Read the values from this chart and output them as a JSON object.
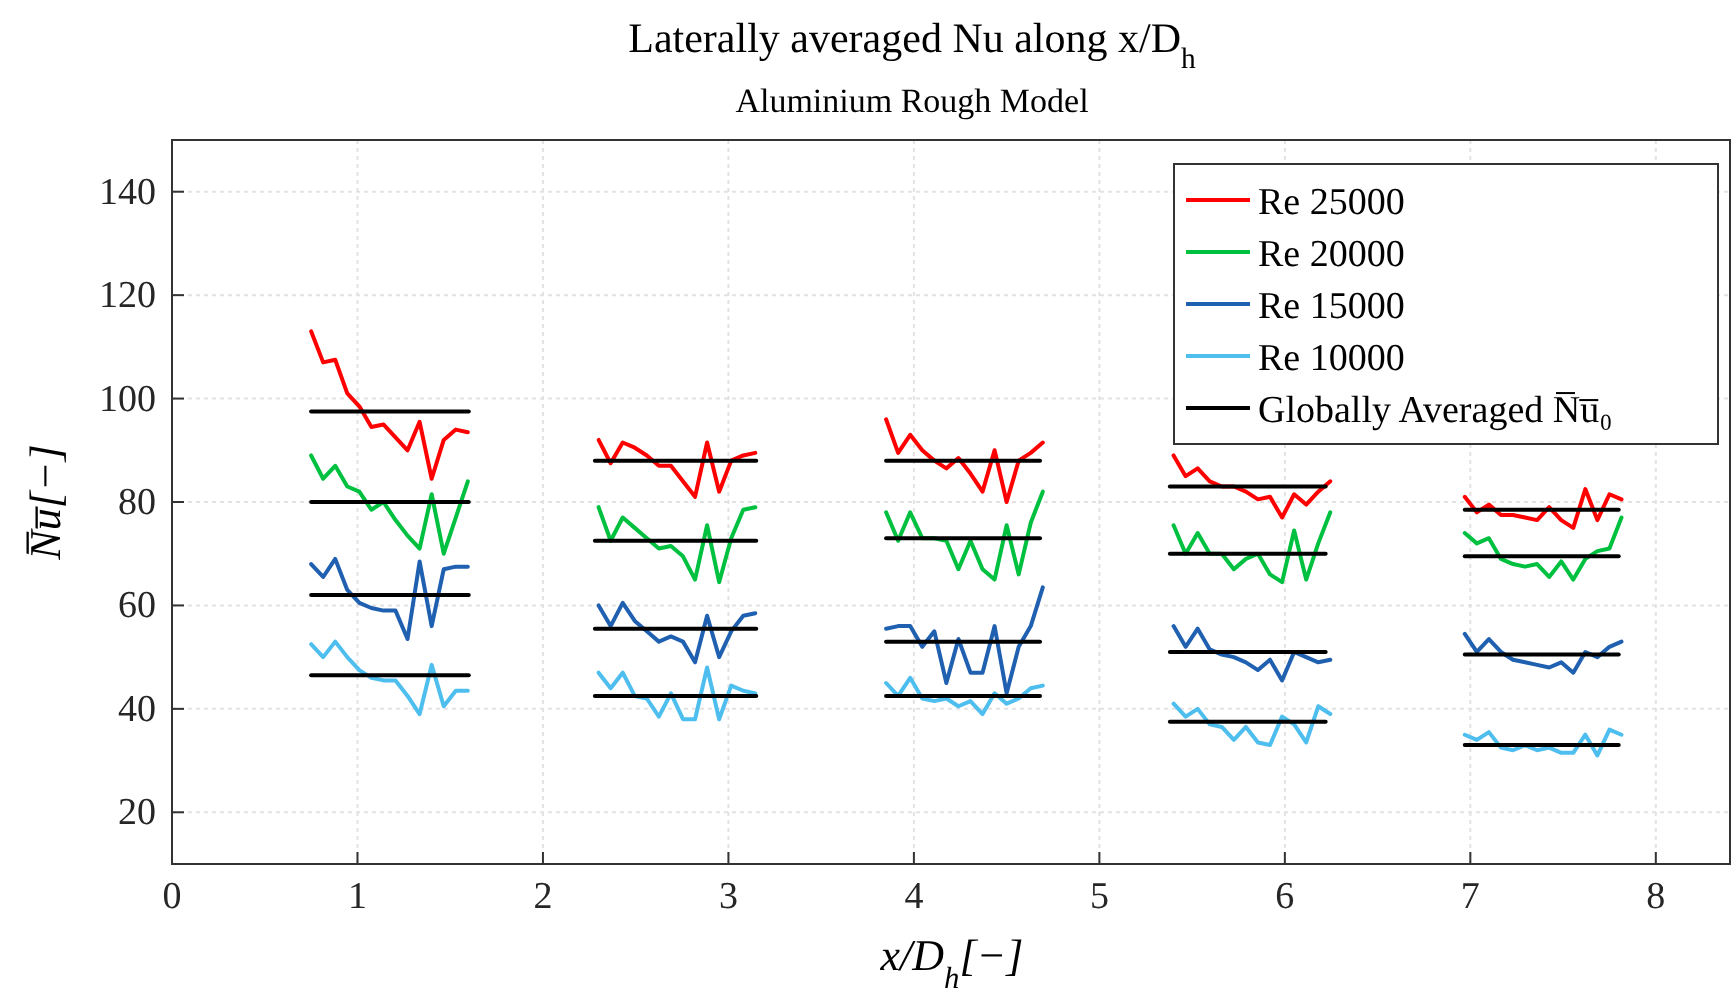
{
  "chart_data": {
    "type": "line",
    "title": "Laterally averaged Nu along x/D$_{h}$",
    "subtitle": "Aluminium Rough Model",
    "xlabel": "x/D$_{h}$[−]",
    "ylabel": "N̅u̅[−]",
    "xlim": [
      0,
      8.4
    ],
    "ylim": [
      10,
      150
    ],
    "xticks": [
      0,
      1,
      2,
      3,
      4,
      5,
      6,
      7,
      8
    ],
    "yticks": [
      20,
      40,
      60,
      80,
      100,
      120,
      140
    ],
    "grid": true,
    "legend": "top right",
    "series": [
      {
        "name": "Re 25000",
        "color": "#ff0000",
        "x": [
          0.75,
          0.815,
          0.88,
          0.945,
          1.01,
          1.075,
          1.14,
          1.205,
          1.27,
          1.335,
          1.4,
          1.465,
          1.53,
          1.595
        ],
        "values": [
          113,
          107,
          107.5,
          101,
          98.5,
          94.5,
          95,
          92.5,
          90,
          95.5,
          84.5,
          92,
          94,
          93.5
        ]
      },
      {
        "color": "#ff0000",
        "x": [
          2.3,
          2.365,
          2.43,
          2.495,
          2.56,
          2.625,
          2.69,
          2.755,
          2.82,
          2.885,
          2.95,
          3.015,
          3.08,
          3.145
        ],
        "values": [
          92,
          87.5,
          91.5,
          90.5,
          89,
          87,
          87,
          84,
          81,
          91.5,
          82,
          88,
          89,
          89.5
        ]
      },
      {
        "color": "#ff0000",
        "x": [
          3.85,
          3.915,
          3.98,
          4.045,
          4.11,
          4.175,
          4.24,
          4.305,
          4.37,
          4.435,
          4.5,
          4.565,
          4.63,
          4.695
        ],
        "values": [
          96,
          89.5,
          93,
          90,
          88,
          86.5,
          88.5,
          85.5,
          82,
          90,
          80,
          88,
          89.5,
          91.5
        ]
      },
      {
        "color": "#ff0000",
        "x": [
          5.4,
          5.465,
          5.53,
          5.595,
          5.66,
          5.725,
          5.79,
          5.855,
          5.92,
          5.985,
          6.05,
          6.115,
          6.18,
          6.245
        ],
        "values": [
          89,
          85,
          86.5,
          84,
          83,
          83,
          82,
          80.5,
          81,
          77,
          81.5,
          79.5,
          82,
          84
        ]
      },
      {
        "color": "#ff0000",
        "x": [
          6.97,
          7.035,
          7.1,
          7.165,
          7.23,
          7.295,
          7.36,
          7.425,
          7.49,
          7.555,
          7.62,
          7.685,
          7.75,
          7.815
        ],
        "values": [
          81,
          78,
          79.5,
          77.5,
          77.5,
          77,
          76.5,
          79,
          76.5,
          75,
          82.5,
          76.5,
          81.5,
          80.5
        ]
      },
      {
        "name": "Re 20000",
        "color": "#00c040",
        "x": [
          0.75,
          0.815,
          0.88,
          0.945,
          1.01,
          1.075,
          1.14,
          1.205,
          1.27,
          1.335,
          1.4,
          1.465,
          1.53,
          1.595
        ],
        "values": [
          89,
          84.5,
          87,
          83,
          82,
          78.5,
          80,
          76.5,
          73.5,
          71,
          81.5,
          70,
          77,
          84
        ]
      },
      {
        "color": "#00c040",
        "x": [
          2.3,
          2.365,
          2.43,
          2.495,
          2.56,
          2.625,
          2.69,
          2.755,
          2.82,
          2.885,
          2.95,
          3.015,
          3.08,
          3.145
        ],
        "values": [
          79,
          72.5,
          77,
          75,
          73,
          71,
          71.5,
          69.5,
          65,
          75.5,
          64.5,
          73,
          78.5,
          79
        ]
      },
      {
        "color": "#00c040",
        "x": [
          3.85,
          3.915,
          3.98,
          4.045,
          4.11,
          4.175,
          4.24,
          4.305,
          4.37,
          4.435,
          4.5,
          4.565,
          4.63,
          4.695
        ],
        "values": [
          78,
          72.5,
          78,
          73,
          73,
          72.5,
          67,
          72.5,
          67,
          65,
          75.5,
          66,
          76,
          82
        ]
      },
      {
        "color": "#00c040",
        "x": [
          5.4,
          5.465,
          5.53,
          5.595,
          5.66,
          5.725,
          5.79,
          5.855,
          5.92,
          5.985,
          6.05,
          6.115,
          6.18,
          6.245
        ],
        "values": [
          75.5,
          70,
          74,
          70,
          70,
          67,
          69,
          70,
          66,
          64.5,
          74.5,
          65,
          72,
          78
        ]
      },
      {
        "color": "#00c040",
        "x": [
          6.97,
          7.035,
          7.1,
          7.165,
          7.23,
          7.295,
          7.36,
          7.425,
          7.49,
          7.555,
          7.62,
          7.685,
          7.75,
          7.815
        ],
        "values": [
          74,
          72,
          73,
          69,
          68,
          67.5,
          68,
          65.5,
          68.5,
          65,
          69,
          70.5,
          71,
          77
        ]
      },
      {
        "name": "Re 15000",
        "color": "#2060b0",
        "x": [
          0.75,
          0.815,
          0.88,
          0.945,
          1.01,
          1.075,
          1.14,
          1.205,
          1.27,
          1.335,
          1.4,
          1.465,
          1.53,
          1.595
        ],
        "values": [
          68,
          65.5,
          69,
          63,
          60.5,
          59.5,
          59,
          59,
          53.5,
          68.5,
          56,
          67,
          67.5,
          67.5
        ]
      },
      {
        "color": "#2060b0",
        "x": [
          2.3,
          2.365,
          2.43,
          2.495,
          2.56,
          2.625,
          2.69,
          2.755,
          2.82,
          2.885,
          2.95,
          3.015,
          3.08,
          3.145
        ],
        "values": [
          60,
          56,
          60.5,
          57,
          55,
          53,
          54,
          53,
          49,
          58,
          50,
          55,
          58,
          58.5
        ]
      },
      {
        "color": "#2060b0",
        "x": [
          3.85,
          3.915,
          3.98,
          4.045,
          4.11,
          4.175,
          4.24,
          4.305,
          4.37,
          4.435,
          4.5,
          4.565,
          4.63,
          4.695
        ],
        "values": [
          55.5,
          56,
          56,
          52,
          55,
          45,
          53.5,
          47,
          47,
          56,
          43,
          52,
          56,
          63.5
        ]
      },
      {
        "color": "#2060b0",
        "x": [
          5.4,
          5.465,
          5.53,
          5.595,
          5.66,
          5.725,
          5.79,
          5.855,
          5.92,
          5.985,
          6.05,
          6.115,
          6.18,
          6.245
        ],
        "values": [
          56,
          52,
          55.5,
          51.5,
          50.5,
          50,
          49,
          47.5,
          49.5,
          45.5,
          51,
          50,
          49,
          49.5
        ]
      },
      {
        "color": "#2060b0",
        "x": [
          6.97,
          7.035,
          7.1,
          7.165,
          7.23,
          7.295,
          7.36,
          7.425,
          7.49,
          7.555,
          7.62,
          7.685,
          7.75,
          7.815
        ],
        "values": [
          54.5,
          51,
          53.5,
          51,
          49.5,
          49,
          48.5,
          48,
          49,
          47,
          51,
          50,
          52,
          53
        ]
      },
      {
        "name": "Re 10000",
        "color": "#4dbeee",
        "x": [
          0.75,
          0.815,
          0.88,
          0.945,
          1.01,
          1.075,
          1.14,
          1.205,
          1.27,
          1.335,
          1.4,
          1.465,
          1.53,
          1.595
        ],
        "values": [
          52.5,
          50,
          53,
          50,
          47.5,
          46,
          45.5,
          45.5,
          42.5,
          39,
          48.5,
          40.5,
          43.5,
          43.5
        ]
      },
      {
        "color": "#4dbeee",
        "x": [
          2.3,
          2.365,
          2.43,
          2.495,
          2.56,
          2.625,
          2.69,
          2.755,
          2.82,
          2.885,
          2.95,
          3.015,
          3.08,
          3.145
        ],
        "values": [
          47,
          44,
          47,
          42.5,
          42,
          38.5,
          43,
          38,
          38,
          48,
          38,
          44.5,
          43.5,
          43
        ]
      },
      {
        "color": "#4dbeee",
        "x": [
          3.85,
          3.915,
          3.98,
          4.045,
          4.11,
          4.175,
          4.24,
          4.305,
          4.37,
          4.435,
          4.5,
          4.565,
          4.63,
          4.695
        ],
        "values": [
          45,
          42.5,
          46,
          42,
          41.5,
          42,
          40.5,
          41.5,
          39,
          43,
          41,
          42,
          44,
          44.5
        ]
      },
      {
        "color": "#4dbeee",
        "x": [
          5.4,
          5.465,
          5.53,
          5.595,
          5.66,
          5.725,
          5.79,
          5.855,
          5.92,
          5.985,
          6.05,
          6.115,
          6.18,
          6.245
        ],
        "values": [
          41,
          38.5,
          40,
          37,
          36.5,
          34,
          36.5,
          33.5,
          33,
          38.5,
          37,
          33.5,
          40.5,
          39
        ]
      },
      {
        "color": "#4dbeee",
        "x": [
          6.97,
          7.035,
          7.1,
          7.165,
          7.23,
          7.295,
          7.36,
          7.425,
          7.49,
          7.555,
          7.62,
          7.685,
          7.75,
          7.815
        ],
        "values": [
          35,
          34,
          35.5,
          32.5,
          32,
          33,
          32,
          32.5,
          31.5,
          31.5,
          35,
          31,
          36,
          35
        ]
      },
      {
        "name": "Globally Averaged N̅u̅₀",
        "color": "#000000",
        "x": [
          0.75,
          1.6
        ],
        "values": [
          97.5,
          97.5
        ]
      },
      {
        "color": "#000000",
        "x": [
          0.75,
          1.6
        ],
        "values": [
          80,
          80
        ]
      },
      {
        "color": "#000000",
        "x": [
          0.75,
          1.6
        ],
        "values": [
          62,
          62
        ]
      },
      {
        "color": "#000000",
        "x": [
          0.75,
          1.6
        ],
        "values": [
          46.5,
          46.5
        ]
      },
      {
        "color": "#000000",
        "x": [
          2.28,
          3.15
        ],
        "values": [
          88,
          88
        ]
      },
      {
        "color": "#000000",
        "x": [
          2.28,
          3.15
        ],
        "values": [
          72.5,
          72.5
        ]
      },
      {
        "color": "#000000",
        "x": [
          2.28,
          3.15
        ],
        "values": [
          55.5,
          55.5
        ]
      },
      {
        "color": "#000000",
        "x": [
          2.28,
          3.15
        ],
        "values": [
          42.5,
          42.5
        ]
      },
      {
        "color": "#000000",
        "x": [
          3.85,
          4.68
        ],
        "values": [
          88,
          88
        ]
      },
      {
        "color": "#000000",
        "x": [
          3.85,
          4.68
        ],
        "values": [
          73,
          73
        ]
      },
      {
        "color": "#000000",
        "x": [
          3.85,
          4.68
        ],
        "values": [
          53,
          53
        ]
      },
      {
        "color": "#000000",
        "x": [
          3.85,
          4.68
        ],
        "values": [
          42.5,
          42.5
        ]
      },
      {
        "color": "#000000",
        "x": [
          5.38,
          6.22
        ],
        "values": [
          83,
          83
        ]
      },
      {
        "color": "#000000",
        "x": [
          5.38,
          6.22
        ],
        "values": [
          70,
          70
        ]
      },
      {
        "color": "#000000",
        "x": [
          5.38,
          6.22
        ],
        "values": [
          51,
          51
        ]
      },
      {
        "color": "#000000",
        "x": [
          5.38,
          6.22
        ],
        "values": [
          37.5,
          37.5
        ]
      },
      {
        "color": "#000000",
        "x": [
          6.97,
          7.8
        ],
        "values": [
          78.5,
          78.5
        ]
      },
      {
        "color": "#000000",
        "x": [
          6.97,
          7.8
        ],
        "values": [
          69.5,
          69.5
        ]
      },
      {
        "color": "#000000",
        "x": [
          6.97,
          7.8
        ],
        "values": [
          50.5,
          50.5
        ]
      },
      {
        "color": "#000000",
        "x": [
          6.97,
          7.8
        ],
        "values": [
          33,
          33
        ]
      }
    ]
  }
}
